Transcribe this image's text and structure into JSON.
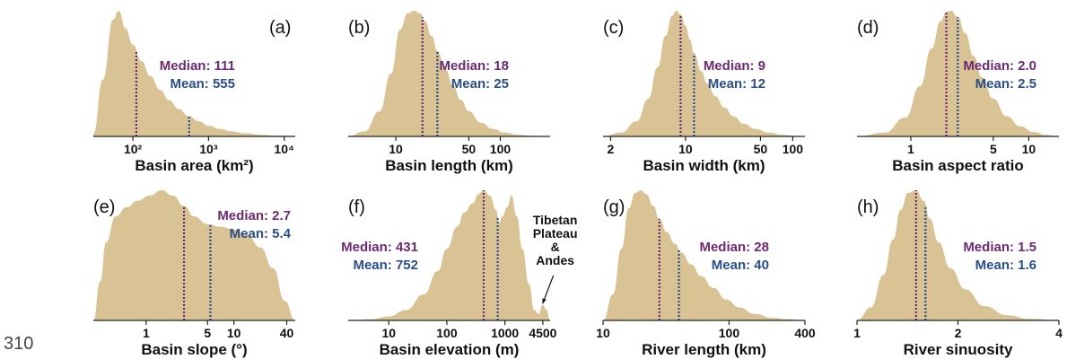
{
  "page_number": "310",
  "colors": {
    "fill": "#d9c293",
    "median": "#6b2a72",
    "mean": "#2a4f86",
    "axis": "#222222",
    "text": "#111111"
  },
  "chart_data": [
    {
      "type": "area",
      "panel_label": "(a)",
      "xlabel": "Basin area (km²)",
      "xscale": "log",
      "xlim": [
        30,
        14000
      ],
      "tick_values": [
        100,
        1000,
        10000
      ],
      "tick_labels": [
        "10²",
        "10³",
        "10⁴"
      ],
      "x": [
        30,
        40,
        55,
        65,
        80,
        100,
        130,
        170,
        230,
        300,
        400,
        550,
        750,
        1000,
        1400,
        2000,
        3000,
        5000,
        8000,
        14000
      ],
      "y": [
        0.02,
        0.45,
        0.93,
        1.0,
        0.86,
        0.73,
        0.6,
        0.48,
        0.37,
        0.29,
        0.22,
        0.16,
        0.12,
        0.085,
        0.06,
        0.04,
        0.025,
        0.013,
        0.007,
        0.003
      ],
      "median": 111,
      "mean": 555,
      "median_label": "Median: 111",
      "mean_label": "Mean: 555"
    },
    {
      "type": "area",
      "panel_label": "(b)",
      "xlabel": "Basin length (km)",
      "xscale": "log",
      "xlim": [
        3.5,
        300
      ],
      "tick_values": [
        10,
        50,
        100
      ],
      "tick_labels": [
        "10",
        "50",
        "100"
      ],
      "x": [
        3.5,
        5,
        7,
        9,
        11,
        13,
        15,
        17,
        19,
        22,
        25,
        30,
        35,
        42,
        50,
        65,
        85,
        110,
        150,
        200,
        300
      ],
      "y": [
        0.0,
        0.04,
        0.2,
        0.5,
        0.85,
        0.98,
        1.0,
        0.98,
        0.92,
        0.8,
        0.68,
        0.53,
        0.41,
        0.29,
        0.2,
        0.11,
        0.06,
        0.03,
        0.012,
        0.005,
        0.0
      ],
      "median": 18,
      "mean": 25,
      "median_label": "Median: 18",
      "mean_label": "Mean: 25"
    },
    {
      "type": "area",
      "panel_label": "(c)",
      "xlabel": "Basin width (km)",
      "xscale": "log",
      "xlim": [
        1.7,
        130
      ],
      "tick_values": [
        2,
        10,
        50,
        100
      ],
      "tick_labels": [
        "2",
        "10",
        "50",
        "100"
      ],
      "x": [
        1.7,
        2.5,
        3.5,
        4.5,
        5.5,
        6.5,
        7.5,
        8.2,
        9,
        10,
        11,
        12,
        14,
        16,
        19,
        23,
        28,
        35,
        45,
        60,
        80,
        100,
        130
      ],
      "y": [
        0.0,
        0.03,
        0.12,
        0.3,
        0.55,
        0.8,
        0.96,
        1.0,
        0.97,
        0.88,
        0.77,
        0.66,
        0.52,
        0.42,
        0.32,
        0.23,
        0.16,
        0.1,
        0.06,
        0.03,
        0.012,
        0.005,
        0.0
      ],
      "median": 9,
      "mean": 12,
      "median_label": "Median: 9",
      "mean_label": "Mean: 12"
    },
    {
      "type": "area",
      "panel_label": "(d)",
      "xlabel": "Basin aspect ratio",
      "xscale": "log",
      "xlim": [
        0.35,
        18
      ],
      "tick_values": [
        1,
        5,
        10
      ],
      "tick_labels": [
        "1",
        "5",
        "10"
      ],
      "x": [
        0.35,
        0.6,
        0.9,
        1.2,
        1.5,
        1.8,
        2.0,
        2.2,
        2.5,
        2.9,
        3.4,
        4.0,
        5.0,
        6.5,
        8.5,
        11,
        14,
        18
      ],
      "y": [
        0.0,
        0.03,
        0.15,
        0.4,
        0.7,
        0.92,
        0.99,
        1.0,
        0.95,
        0.82,
        0.64,
        0.47,
        0.3,
        0.16,
        0.08,
        0.035,
        0.012,
        0.0
      ],
      "median": 2.0,
      "mean": 2.5,
      "median_label": "Median: 2.0",
      "mean_label": "Mean: 2.5"
    },
    {
      "type": "area",
      "panel_label": "(e)",
      "xlabel": "Basin slope (°)",
      "xscale": "log",
      "xlim": [
        0.25,
        50
      ],
      "tick_values": [
        1,
        5,
        10,
        40
      ],
      "tick_labels": [
        "1",
        "5",
        "10",
        "40"
      ],
      "x": [
        0.25,
        0.3,
        0.35,
        0.45,
        0.6,
        0.8,
        1.1,
        1.5,
        2.0,
        2.7,
        3.5,
        5.0,
        7.0,
        10,
        14,
        20,
        28,
        38,
        50
      ],
      "y": [
        0.0,
        0.3,
        0.6,
        0.8,
        0.87,
        0.92,
        0.96,
        1.0,
        0.96,
        0.88,
        0.8,
        0.74,
        0.72,
        0.7,
        0.66,
        0.56,
        0.4,
        0.15,
        0.0
      ],
      "median": 2.7,
      "mean": 5.4,
      "median_label": "Median: 2.7",
      "mean_label": "Mean: 5.4"
    },
    {
      "type": "area",
      "panel_label": "(f)",
      "xlabel": "Basin elevation (m)",
      "xscale": "log",
      "xlim": [
        2,
        6000
      ],
      "tick_values": [
        10,
        100,
        1000,
        4500
      ],
      "tick_labels": [
        "10",
        "100",
        "1000",
        "4500"
      ],
      "x": [
        2,
        5,
        10,
        20,
        40,
        70,
        100,
        150,
        200,
        280,
        350,
        430,
        550,
        700,
        800,
        900,
        1100,
        1300,
        1600,
        2000,
        2600,
        3200,
        3800,
        4500,
        5200,
        6000
      ],
      "y": [
        0.0,
        0.01,
        0.03,
        0.08,
        0.2,
        0.38,
        0.55,
        0.72,
        0.83,
        0.9,
        0.97,
        1.0,
        0.96,
        0.85,
        0.75,
        0.8,
        0.87,
        0.96,
        0.8,
        0.55,
        0.28,
        0.08,
        0.05,
        0.12,
        0.08,
        0.0
      ],
      "median": 431,
      "mean": 752,
      "median_label": "Median: 431",
      "mean_label": "Mean: 752",
      "annotation": {
        "lines": [
          "Tibetan",
          "Plateau",
          "&",
          "Andes"
        ],
        "target_x": 4300
      }
    },
    {
      "type": "area",
      "panel_label": "(g)",
      "xlabel": "River length (km)",
      "xscale": "log",
      "xlim": [
        10,
        400
      ],
      "tick_values": [
        10,
        100,
        400
      ],
      "tick_labels": [
        "10",
        "100",
        "400"
      ],
      "x": [
        10,
        12,
        14,
        16,
        18,
        20,
        22,
        25,
        28,
        32,
        37,
        42,
        50,
        60,
        75,
        95,
        120,
        160,
        220,
        300,
        400
      ],
      "y": [
        0.0,
        0.2,
        0.55,
        0.86,
        0.98,
        1.0,
        0.97,
        0.88,
        0.78,
        0.68,
        0.59,
        0.52,
        0.43,
        0.34,
        0.25,
        0.16,
        0.1,
        0.05,
        0.02,
        0.008,
        0.0
      ],
      "median": 28,
      "mean": 40,
      "median_label": "Median: 28",
      "mean_label": "Mean: 40"
    },
    {
      "type": "area",
      "panel_label": "(h)",
      "xlabel": "River sinuosity",
      "xscale": "log",
      "xlim": [
        1,
        4
      ],
      "tick_values": [
        1,
        2,
        4
      ],
      "tick_labels": [
        "1",
        "2",
        "4"
      ],
      "x": [
        1,
        1.1,
        1.2,
        1.28,
        1.35,
        1.42,
        1.5,
        1.58,
        1.65,
        1.75,
        1.9,
        2.1,
        2.4,
        2.8,
        3.3,
        4.0
      ],
      "y": [
        0.0,
        0.1,
        0.35,
        0.62,
        0.85,
        0.98,
        1.0,
        0.92,
        0.78,
        0.6,
        0.4,
        0.24,
        0.11,
        0.04,
        0.012,
        0.0
      ],
      "median": 1.5,
      "mean": 1.6,
      "median_label": "Median: 1.5",
      "mean_label": "Mean: 1.6"
    }
  ]
}
